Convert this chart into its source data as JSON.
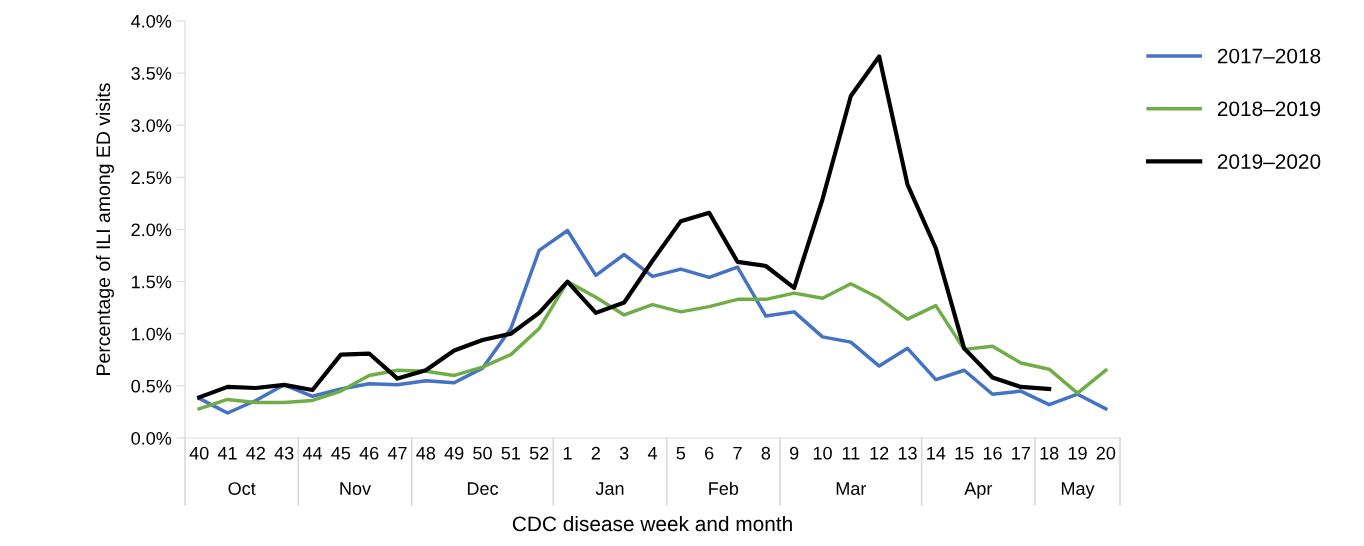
{
  "chart_data": {
    "type": "line",
    "xlabel": "CDC disease week and month",
    "ylabel": "Percentage of ILI among ED visits",
    "categories": [
      "40",
      "41",
      "42",
      "43",
      "44",
      "45",
      "46",
      "47",
      "48",
      "49",
      "50",
      "51",
      "52",
      "1",
      "2",
      "3",
      "4",
      "5",
      "6",
      "7",
      "8",
      "9",
      "10",
      "11",
      "12",
      "13",
      "14",
      "15",
      "16",
      "17",
      "18",
      "19",
      "20"
    ],
    "series": [
      {
        "name": "2017–2018",
        "color": "#4472c4",
        "values": [
          0.38,
          0.24,
          0.36,
          0.51,
          0.4,
          0.47,
          0.52,
          0.51,
          0.55,
          0.53,
          0.67,
          1.05,
          1.8,
          1.99,
          1.56,
          1.76,
          1.55,
          1.62,
          1.54,
          1.64,
          1.17,
          1.21,
          0.97,
          0.92,
          0.69,
          0.86,
          0.56,
          0.65,
          0.42,
          0.45,
          0.32,
          0.42,
          0.28
        ]
      },
      {
        "name": "2018–2019",
        "color": "#70ad47",
        "values": [
          0.28,
          0.37,
          0.34,
          0.34,
          0.36,
          0.45,
          0.6,
          0.65,
          0.64,
          0.6,
          0.68,
          0.8,
          1.05,
          1.5,
          1.35,
          1.18,
          1.28,
          1.21,
          1.26,
          1.33,
          1.33,
          1.39,
          1.34,
          1.48,
          1.34,
          1.14,
          1.27,
          0.85,
          0.88,
          0.72,
          0.66,
          0.43,
          0.65
        ]
      },
      {
        "name": "2019–2020",
        "color": "#000000",
        "values": [
          0.39,
          0.49,
          0.48,
          0.51,
          0.46,
          0.8,
          0.81,
          0.57,
          0.65,
          0.84,
          0.94,
          1.0,
          1.2,
          1.5,
          1.2,
          1.3,
          1.7,
          2.08,
          2.16,
          1.69,
          1.65,
          1.44,
          2.29,
          3.28,
          3.66,
          2.43,
          1.82,
          0.86,
          0.58,
          0.49,
          0.47,
          null,
          null
        ]
      }
    ],
    "ylim": [
      0,
      4
    ],
    "yticks": [
      {
        "value": 0,
        "label": "0.0%"
      },
      {
        "value": 0.5,
        "label": "0.5%"
      },
      {
        "value": 1,
        "label": "1.0%"
      },
      {
        "value": 1.5,
        "label": "1.5%"
      },
      {
        "value": 2,
        "label": "2.0%"
      },
      {
        "value": 2.5,
        "label": "2.5%"
      },
      {
        "value": 3,
        "label": "3.0%"
      },
      {
        "value": 3.5,
        "label": "3.5%"
      },
      {
        "value": 4,
        "label": "4.0%"
      }
    ],
    "annotations": [
      "Oct",
      "Nov",
      "Dec",
      "Jan",
      "Feb",
      "Mar",
      "Apr",
      "May"
    ],
    "grid": false,
    "legend": "top right",
    "marker": "none",
    "line_style": "solid"
  }
}
